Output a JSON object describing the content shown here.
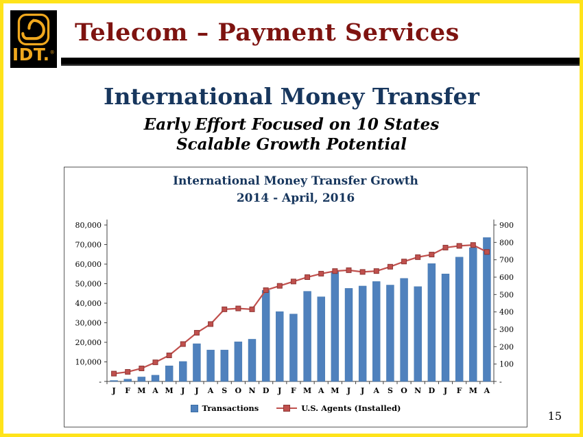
{
  "slide": {
    "logo_text": "IDT.",
    "logo_reg": "®",
    "header_title": "Telecom – Payment Services",
    "title": "International Money Transfer",
    "subtitle1": "Early Effort Focused on 10 States",
    "subtitle2": "Scalable Growth Potential",
    "page_number": "15"
  },
  "colors": {
    "accent_yellow": "#FFE31A",
    "logo_gold": "#F0A81E",
    "header_maroon": "#7E1310",
    "navy": "#17365D",
    "bar_blue": "#4F81BD",
    "line_red": "#C0504D"
  },
  "chart_data": {
    "type": "bar",
    "subtype": "combo-bar-line",
    "title": "International Money Transfer Growth",
    "subtitle": "2014 - April, 2016",
    "categories": [
      "J",
      "F",
      "M",
      "A",
      "M",
      "J",
      "J",
      "A",
      "S",
      "O",
      "N",
      "D",
      "J",
      "F",
      "M",
      "A",
      "M",
      "J",
      "J",
      "A",
      "S",
      "O",
      "N",
      "D",
      "J",
      "F",
      "M",
      "A"
    ],
    "series": [
      {
        "name": "Transactions",
        "type": "bar",
        "axis": "left",
        "color": "#4F81BD",
        "values": [
          500,
          1200,
          2300,
          3200,
          8000,
          10200,
          19300,
          16100,
          16100,
          20300,
          21600,
          46600,
          35700,
          34500,
          46100,
          43300,
          56300,
          47600,
          48800,
          51100,
          49300,
          52700,
          48500,
          60300,
          55000,
          63600,
          68400,
          73600
        ]
      },
      {
        "name": "U.S. Agents (Installed)",
        "type": "line",
        "axis": "right",
        "color": "#C0504D",
        "values": [
          45,
          55,
          75,
          110,
          150,
          215,
          280,
          330,
          415,
          420,
          415,
          525,
          550,
          575,
          600,
          620,
          635,
          640,
          630,
          635,
          660,
          690,
          715,
          730,
          770,
          780,
          785,
          745
        ]
      }
    ],
    "left_axis": {
      "min": 0,
      "max": 80000,
      "step": 10000,
      "zero_label": "-"
    },
    "right_axis": {
      "min": 0,
      "max": 900,
      "step": 100,
      "zero_label": "-"
    },
    "legend_position": "bottom",
    "grid": false
  }
}
